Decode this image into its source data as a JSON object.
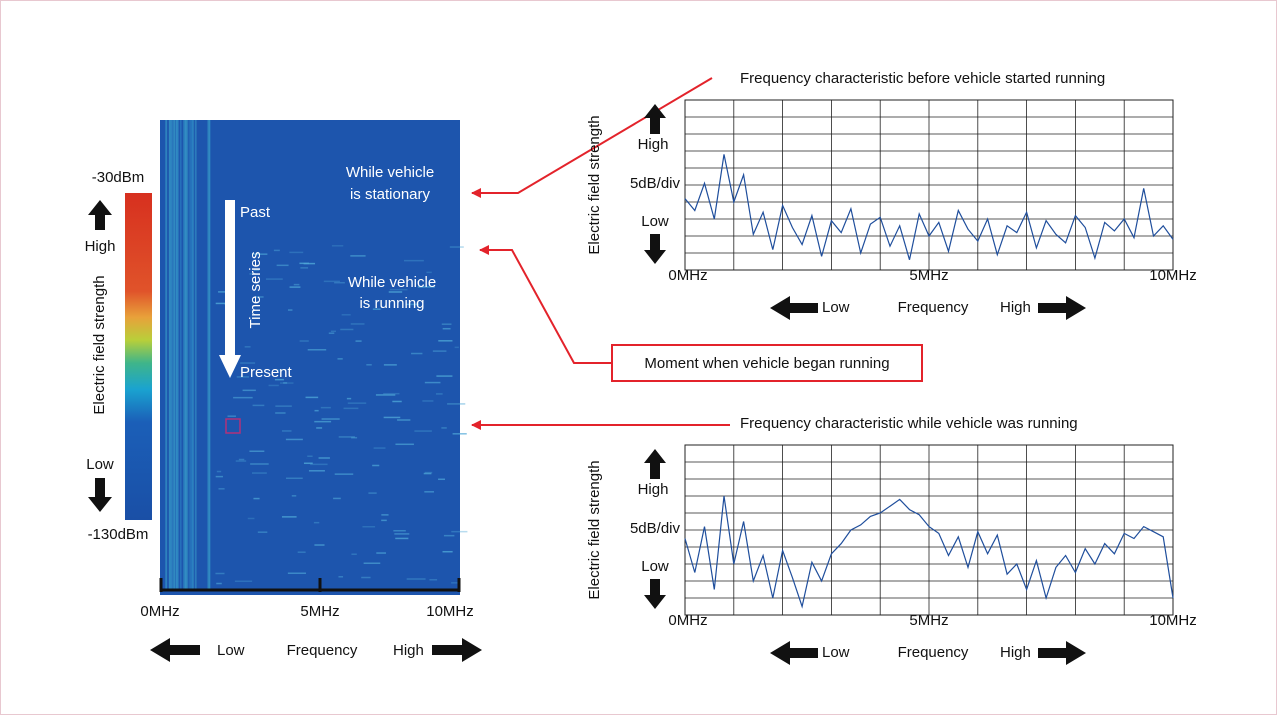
{
  "colorbar": {
    "max": "-30dBm",
    "high": "High",
    "label": "Electric field strength",
    "low": "Low",
    "min": "-130dBm"
  },
  "spectrogram": {
    "past": "Past",
    "time": "Time series",
    "present": "Present",
    "stationary": [
      "While vehicle",
      "is stationary"
    ],
    "running": [
      "While vehicle",
      "is running"
    ],
    "xticks": [
      "0MHz",
      "5MHz",
      "10MHz"
    ],
    "x_low": "Low",
    "x_label": "Frequency",
    "x_high": "High"
  },
  "callout": "Moment when vehicle began running",
  "chart_data": [
    {
      "type": "line",
      "title": "Frequency characteristic before vehicle started running",
      "y_label": "Electric field strength",
      "y_high": "High",
      "y_scale": "5dB/div",
      "y_low": "Low",
      "x_label": "Frequency",
      "x_low": "Low",
      "x_high": "High",
      "color": "#1f4e9c",
      "grid": true,
      "xlim": [
        0,
        10
      ],
      "ylim": [
        0,
        10
      ],
      "xticks": [
        {
          "value": 0,
          "label": "0MHz"
        },
        {
          "value": 5,
          "label": "5MHz"
        },
        {
          "value": 10,
          "label": "10MHz"
        }
      ],
      "xgrid": [
        1,
        2,
        3,
        4,
        6,
        7,
        8,
        9
      ],
      "yticks": [
        0,
        1,
        2,
        3,
        4,
        5,
        6,
        7,
        8,
        9,
        10
      ],
      "x": [
        0,
        0.2,
        0.4,
        0.6,
        0.8,
        1,
        1.2,
        1.4,
        1.6,
        1.8,
        2,
        2.2,
        2.4,
        2.6,
        2.8,
        3,
        3.2,
        3.4,
        3.6,
        3.8,
        4,
        4.2,
        4.4,
        4.6,
        4.8,
        5,
        5.2,
        5.4,
        5.6,
        5.8,
        6,
        6.2,
        6.4,
        6.6,
        6.8,
        7,
        7.2,
        7.4,
        7.6,
        7.8,
        8,
        8.2,
        8.4,
        8.6,
        8.8,
        9,
        9.2,
        9.4,
        9.6,
        9.8,
        10
      ],
      "values": [
        4.2,
        3.5,
        5.1,
        3.0,
        6.8,
        4.0,
        5.6,
        2.1,
        3.4,
        1.2,
        3.8,
        2.5,
        1.5,
        3.2,
        0.8,
        2.9,
        2.2,
        3.6,
        1.0,
        2.7,
        3.1,
        1.4,
        2.6,
        0.6,
        3.3,
        2.0,
        2.8,
        1.1,
        3.5,
        2.4,
        1.7,
        3.0,
        0.9,
        2.6,
        2.2,
        3.4,
        1.3,
        2.9,
        2.1,
        1.6,
        3.2,
        2.5,
        0.7,
        2.8,
        2.3,
        3.0,
        1.9,
        4.8,
        2.0,
        2.6,
        1.8
      ]
    },
    {
      "type": "line",
      "title": "Frequency characteristic while vehicle was running",
      "y_label": "Electric field strength",
      "y_high": "High",
      "y_scale": "5dB/div",
      "y_low": "Low",
      "x_label": "Frequency",
      "x_low": "Low",
      "x_high": "High",
      "color": "#1f4e9c",
      "grid": true,
      "xlim": [
        0,
        10
      ],
      "ylim": [
        0,
        10
      ],
      "xticks": [
        {
          "value": 0,
          "label": "0MHz"
        },
        {
          "value": 5,
          "label": "5MHz"
        },
        {
          "value": 10,
          "label": "10MHz"
        }
      ],
      "xgrid": [
        1,
        2,
        3,
        4,
        6,
        7,
        8,
        9
      ],
      "yticks": [
        0,
        1,
        2,
        3,
        4,
        5,
        6,
        7,
        8,
        9,
        10
      ],
      "x": [
        0,
        0.2,
        0.4,
        0.6,
        0.8,
        1,
        1.2,
        1.4,
        1.6,
        1.8,
        2,
        2.2,
        2.4,
        2.6,
        2.8,
        3,
        3.2,
        3.4,
        3.6,
        3.8,
        4,
        4.2,
        4.4,
        4.6,
        4.8,
        5,
        5.2,
        5.4,
        5.6,
        5.8,
        6,
        6.2,
        6.4,
        6.6,
        6.8,
        7,
        7.2,
        7.4,
        7.6,
        7.8,
        8,
        8.2,
        8.4,
        8.6,
        8.8,
        9,
        9.2,
        9.4,
        9.6,
        9.8,
        10
      ],
      "values": [
        4.5,
        2.5,
        5.2,
        1.5,
        7.0,
        3.0,
        5.5,
        2.0,
        3.5,
        1.0,
        3.8,
        2.2,
        0.5,
        3.1,
        2.0,
        3.6,
        4.2,
        5.0,
        5.3,
        5.8,
        6.0,
        6.4,
        6.8,
        6.2,
        5.9,
        5.2,
        4.8,
        3.5,
        4.6,
        2.8,
        4.9,
        3.6,
        4.7,
        2.4,
        3.0,
        1.5,
        3.2,
        1.0,
        2.8,
        3.5,
        2.5,
        3.9,
        3.0,
        4.2,
        3.6,
        4.8,
        4.5,
        5.2,
        4.9,
        4.6,
        1.0
      ]
    }
  ]
}
